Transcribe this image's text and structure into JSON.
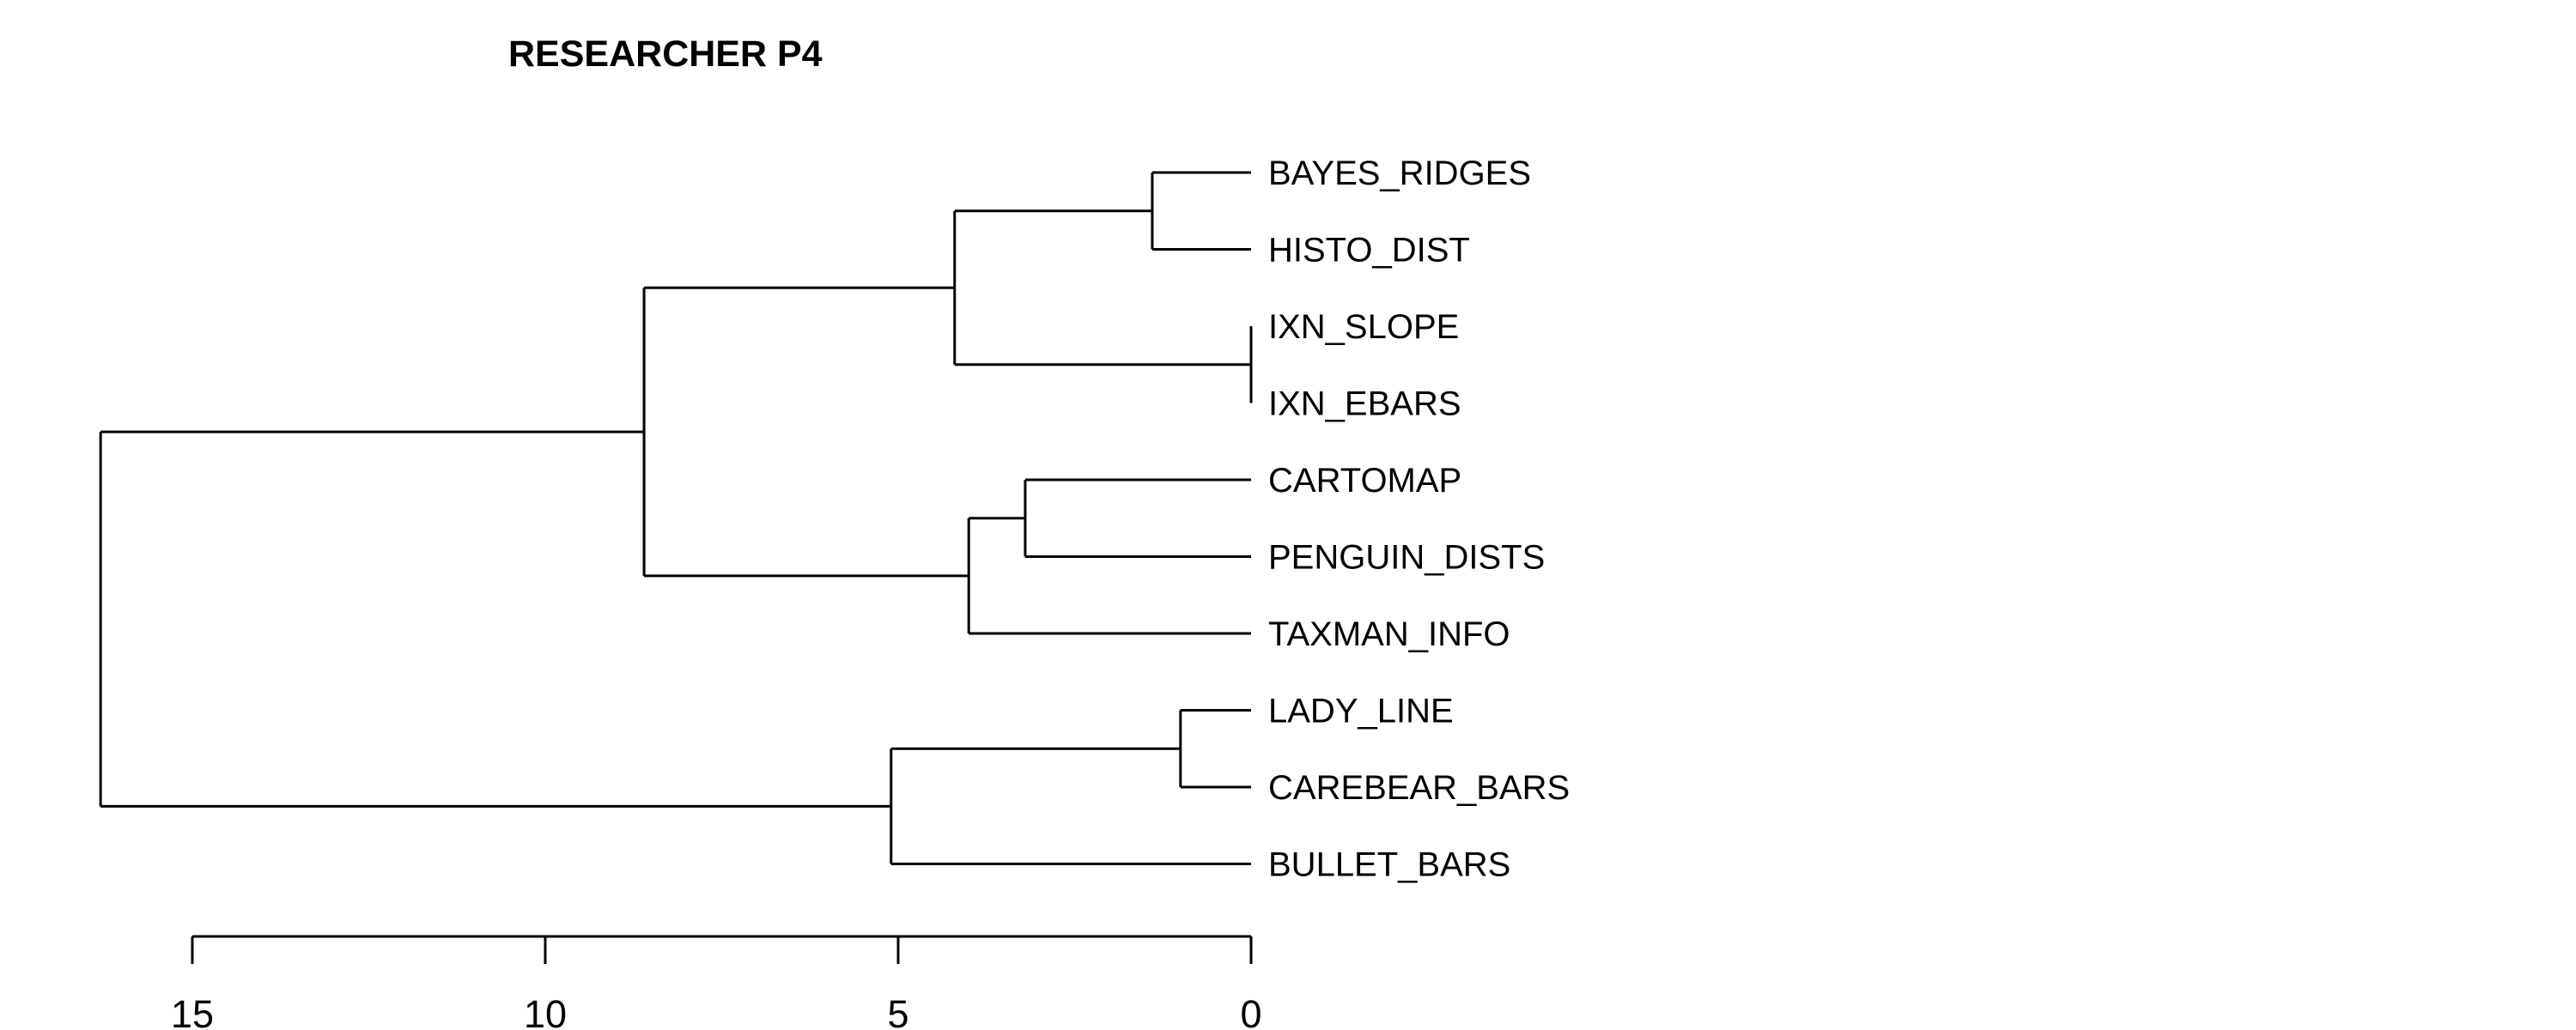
{
  "chart_data": {
    "type": "dendrogram",
    "title": "RESEARCHER P4",
    "orientation": "horizontal",
    "x_axis": {
      "ticks": [
        15,
        10,
        5,
        0
      ],
      "xlim": [
        15,
        0
      ]
    },
    "leaves": [
      "BAYES_RIDGES",
      "HISTO_DIST",
      "IXN_SLOPE",
      "IXN_EBARS",
      "CARTOMAP",
      "PENGUIN_DISTS",
      "TAXMAN_INFO",
      "LADY_LINE",
      "CAREBEAR_BARS",
      "BULLET_BARS"
    ],
    "merges": [
      {
        "id": "m1",
        "children": [
          "IXN_SLOPE",
          "IXN_EBARS"
        ],
        "height": 0.0
      },
      {
        "id": "m2",
        "children": [
          "LADY_LINE",
          "CAREBEAR_BARS"
        ],
        "height": 1.0
      },
      {
        "id": "m3",
        "children": [
          "BAYES_RIDGES",
          "HISTO_DIST"
        ],
        "height": 1.4
      },
      {
        "id": "m4",
        "children": [
          "CARTOMAP",
          "PENGUIN_DISTS"
        ],
        "height": 3.2
      },
      {
        "id": "m5",
        "children": [
          "m4",
          "TAXMAN_INFO"
        ],
        "height": 4.0
      },
      {
        "id": "m6",
        "children": [
          "m3",
          "m1"
        ],
        "height": 4.2
      },
      {
        "id": "m7",
        "children": [
          "m2",
          "BULLET_BARS"
        ],
        "height": 5.1
      },
      {
        "id": "m8",
        "children": [
          "m6",
          "m5"
        ],
        "height": 8.6
      },
      {
        "id": "m9",
        "children": [
          "m8",
          "m7"
        ],
        "height": 16.3
      }
    ]
  }
}
